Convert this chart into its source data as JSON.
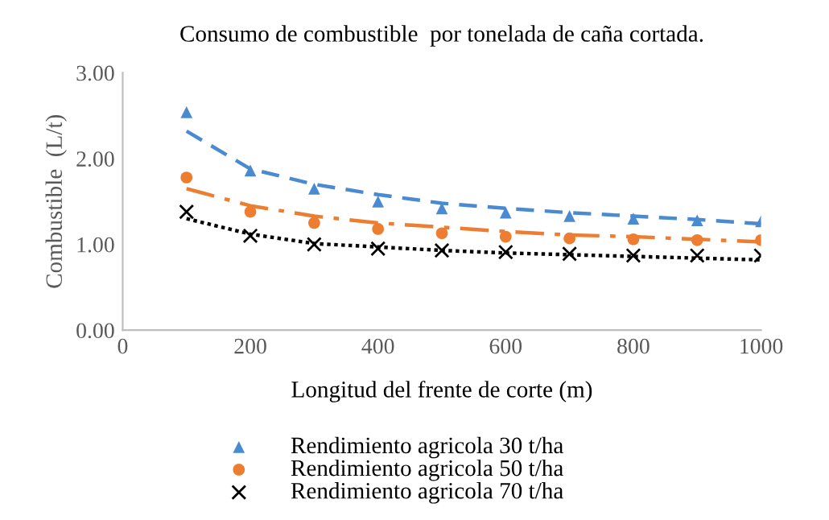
{
  "chart_data": {
    "type": "scatter",
    "title": "Consumo de combustible  por tonelada de caña cortada.",
    "xlabel": "Longitud del frente de corte (m)",
    "ylabel": "Combustible  (L/t)",
    "x": [
      100,
      200,
      300,
      400,
      500,
      600,
      700,
      800,
      900,
      1000
    ],
    "series": [
      {
        "name": "Rendimiento agricola 30 t/ha",
        "color": "#4a8ad0",
        "marker": "triangle",
        "values": [
          2.54,
          1.86,
          1.65,
          1.5,
          1.42,
          1.37,
          1.33,
          1.3,
          1.28,
          1.27
        ]
      },
      {
        "name": "Rendimiento agricola 50 t/ha",
        "color": "#ed7d31",
        "marker": "circle",
        "values": [
          1.78,
          1.38,
          1.25,
          1.18,
          1.13,
          1.09,
          1.07,
          1.06,
          1.05,
          1.05
        ]
      },
      {
        "name": "Rendimiento agricola 70 t/ha",
        "color": "#000000",
        "marker": "cross",
        "values": [
          1.38,
          1.1,
          1.0,
          0.95,
          0.93,
          0.91,
          0.89,
          0.87,
          0.87,
          0.87
        ]
      },
      {
        "type": "line",
        "color": "#4a8ad0",
        "line_style": "dashed",
        "values": [
          2.32,
          1.88,
          1.7,
          1.58,
          1.48,
          1.42,
          1.37,
          1.33,
          1.29,
          1.24
        ]
      },
      {
        "type": "line",
        "color": "#ed7d31",
        "line_style": "dashdot",
        "values": [
          1.65,
          1.45,
          1.33,
          1.25,
          1.2,
          1.15,
          1.11,
          1.09,
          1.06,
          1.03
        ]
      },
      {
        "type": "line",
        "color": "#000000",
        "line_style": "dotted",
        "values": [
          1.3,
          1.12,
          1.01,
          0.97,
          0.93,
          0.9,
          0.88,
          0.86,
          0.84,
          0.82
        ]
      }
    ],
    "xlim": [
      0,
      1000
    ],
    "xticks": [
      0,
      200,
      400,
      600,
      800,
      1000
    ],
    "ylim": [
      0,
      3
    ],
    "yticks": [
      {
        "value": 0,
        "label": "0.00"
      },
      {
        "value": 1,
        "label": "1.00"
      },
      {
        "value": 2,
        "label": "2.00"
      },
      {
        "value": 3,
        "label": "3.00"
      }
    ],
    "grid": false,
    "legend": "bottom"
  }
}
